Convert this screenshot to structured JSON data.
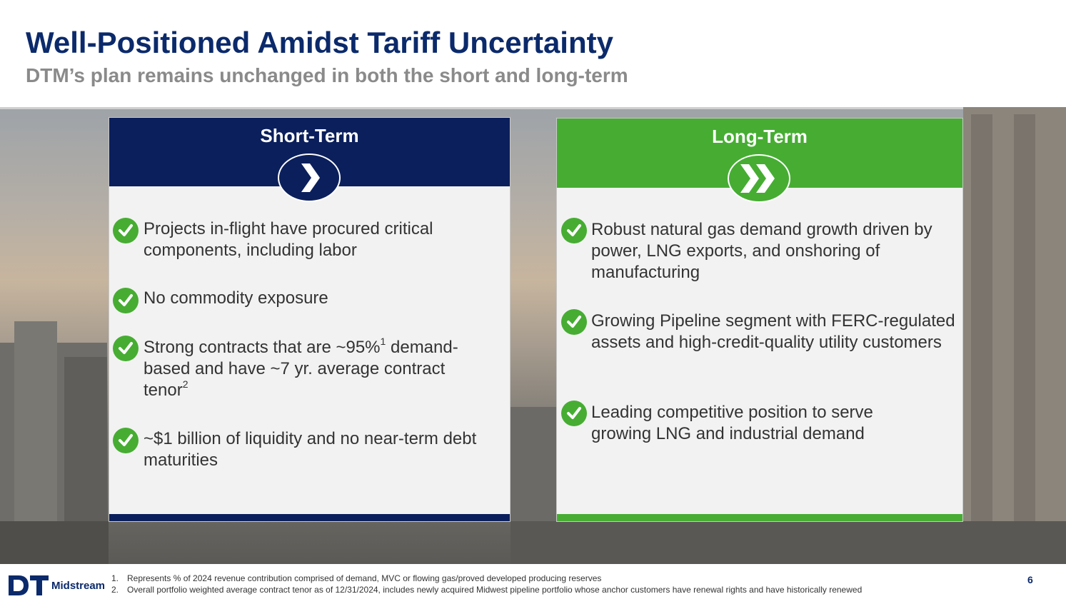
{
  "header": {
    "title": "Well-Positioned Amidst Tariff Uncertainty",
    "subtitle": "DTM’s plan remains unchanged in both the short and long-term"
  },
  "short_term": {
    "heading": "Short-Term",
    "icon": "chevron-right-icon",
    "color": "#0b1f5c",
    "bullets": [
      {
        "text": "Projects in-flight have procured critical components, including labor"
      },
      {
        "text": "No commodity exposure"
      },
      {
        "pre": "Strong contracts that are ~95%",
        "sup1": "1",
        "mid": " demand-based and have ~7 yr. average contract tenor",
        "sup2": "2"
      },
      {
        "text": "~$1 billion of liquidity and no near-term debt maturities"
      }
    ]
  },
  "long_term": {
    "heading": "Long-Term",
    "icon": "double-chevron-right-icon",
    "color": "#46ad32",
    "bullets": [
      {
        "text": "Robust natural gas demand growth driven by power, LNG exports, and onshoring of manufacturing"
      },
      {
        "text": "Growing Pipeline segment with FERC-regulated assets and high-credit-quality utility customers"
      },
      {
        "text": "Leading competitive position to serve growing LNG and industrial demand"
      }
    ]
  },
  "footer": {
    "logo_text": "Midstream",
    "notes": [
      {
        "num": "1.",
        "text": "Represents % of 2024 revenue contribution comprised of demand, MVC or flowing gas/proved developed producing reserves"
      },
      {
        "num": "2.",
        "text": "Overall portfolio weighted average contract tenor as of 12/31/2024, includes newly acquired Midwest pipeline portfolio whose anchor customers have renewal rights and have historically renewed"
      }
    ],
    "page_number": "6"
  }
}
